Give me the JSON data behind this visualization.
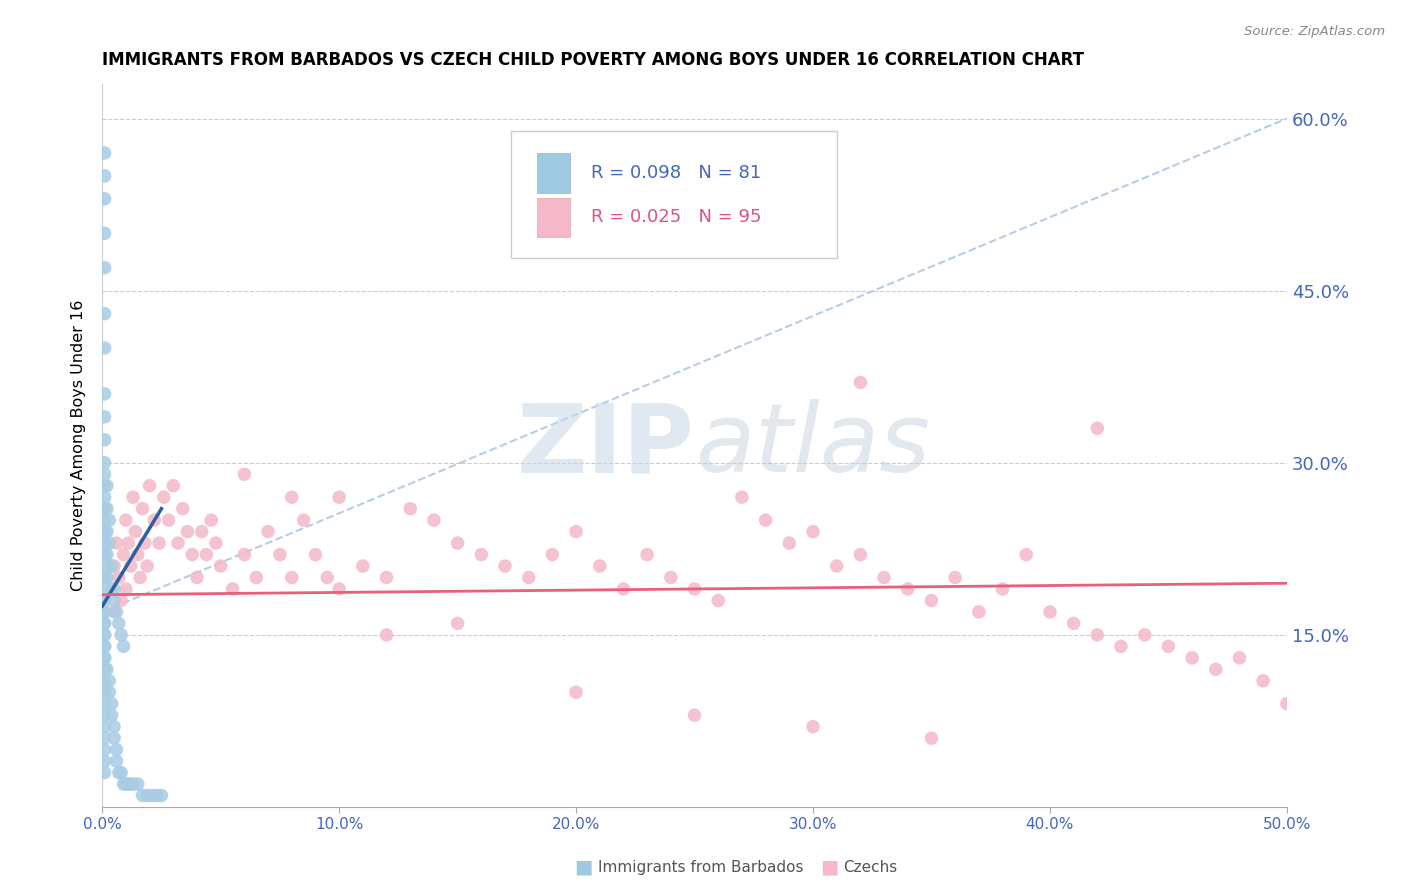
{
  "title": "IMMIGRANTS FROM BARBADOS VS CZECH CHILD POVERTY AMONG BOYS UNDER 16 CORRELATION CHART",
  "source": "Source: ZipAtlas.com",
  "ylabel": "Child Poverty Among Boys Under 16",
  "xlim": [
    0.0,
    0.5
  ],
  "ylim": [
    0.0,
    0.63
  ],
  "legend1_R": "0.098",
  "legend1_N": "81",
  "legend2_R": "0.025",
  "legend2_N": "95",
  "blue_color": "#a8cce4",
  "blue_fill_color": "#9ecae1",
  "blue_line_color": "#2c5f9e",
  "blue_dash_color": "#b0c8e0",
  "pink_color": "#f4b8c8",
  "pink_line_color": "#e8607a",
  "tick_color": "#4466bb",
  "watermark_color": "#c8d8e8",
  "barbados_x": [
    0.001,
    0.001,
    0.001,
    0.001,
    0.001,
    0.001,
    0.001,
    0.001,
    0.001,
    0.001,
    0.001,
    0.001,
    0.001,
    0.001,
    0.001,
    0.001,
    0.001,
    0.001,
    0.001,
    0.001,
    0.001,
    0.001,
    0.001,
    0.001,
    0.001,
    0.001,
    0.001,
    0.001,
    0.001,
    0.001,
    0.001,
    0.001,
    0.001,
    0.001,
    0.001,
    0.001,
    0.002,
    0.002,
    0.002,
    0.002,
    0.002,
    0.003,
    0.003,
    0.004,
    0.005,
    0.005,
    0.006,
    0.007,
    0.008,
    0.009,
    0.001,
    0.001,
    0.001,
    0.001,
    0.001,
    0.001,
    0.001,
    0.001,
    0.001,
    0.002,
    0.003,
    0.003,
    0.004,
    0.004,
    0.005,
    0.005,
    0.006,
    0.006,
    0.007,
    0.008,
    0.009,
    0.01,
    0.011,
    0.012,
    0.013,
    0.015,
    0.017,
    0.019,
    0.021,
    0.023,
    0.025
  ],
  "barbados_y": [
    0.57,
    0.55,
    0.53,
    0.5,
    0.47,
    0.43,
    0.4,
    0.36,
    0.34,
    0.32,
    0.3,
    0.29,
    0.28,
    0.27,
    0.26,
    0.25,
    0.24,
    0.23,
    0.22,
    0.21,
    0.2,
    0.2,
    0.19,
    0.18,
    0.18,
    0.17,
    0.17,
    0.16,
    0.16,
    0.15,
    0.15,
    0.14,
    0.14,
    0.13,
    0.13,
    0.12,
    0.28,
    0.26,
    0.24,
    0.22,
    0.2,
    0.25,
    0.23,
    0.21,
    0.19,
    0.18,
    0.17,
    0.16,
    0.15,
    0.14,
    0.11,
    0.1,
    0.09,
    0.08,
    0.07,
    0.06,
    0.05,
    0.04,
    0.03,
    0.12,
    0.11,
    0.1,
    0.09,
    0.08,
    0.07,
    0.06,
    0.05,
    0.04,
    0.03,
    0.03,
    0.02,
    0.02,
    0.02,
    0.02,
    0.02,
    0.02,
    0.01,
    0.01,
    0.01,
    0.01,
    0.01
  ],
  "czech_x": [
    0.004,
    0.005,
    0.005,
    0.006,
    0.007,
    0.008,
    0.009,
    0.01,
    0.01,
    0.011,
    0.012,
    0.013,
    0.014,
    0.015,
    0.016,
    0.017,
    0.018,
    0.019,
    0.02,
    0.022,
    0.024,
    0.026,
    0.028,
    0.03,
    0.032,
    0.034,
    0.036,
    0.038,
    0.04,
    0.042,
    0.044,
    0.046,
    0.048,
    0.05,
    0.055,
    0.06,
    0.065,
    0.07,
    0.075,
    0.08,
    0.085,
    0.09,
    0.095,
    0.1,
    0.11,
    0.12,
    0.13,
    0.14,
    0.15,
    0.16,
    0.17,
    0.18,
    0.19,
    0.2,
    0.21,
    0.22,
    0.23,
    0.24,
    0.25,
    0.26,
    0.27,
    0.28,
    0.29,
    0.3,
    0.31,
    0.32,
    0.33,
    0.34,
    0.35,
    0.36,
    0.37,
    0.38,
    0.39,
    0.4,
    0.41,
    0.42,
    0.43,
    0.44,
    0.45,
    0.46,
    0.47,
    0.48,
    0.49,
    0.5,
    0.32,
    0.42,
    0.15,
    0.2,
    0.25,
    0.3,
    0.35,
    0.06,
    0.08,
    0.1,
    0.12
  ],
  "czech_y": [
    0.19,
    0.21,
    0.17,
    0.23,
    0.2,
    0.18,
    0.22,
    0.25,
    0.19,
    0.23,
    0.21,
    0.27,
    0.24,
    0.22,
    0.2,
    0.26,
    0.23,
    0.21,
    0.28,
    0.25,
    0.23,
    0.27,
    0.25,
    0.28,
    0.23,
    0.26,
    0.24,
    0.22,
    0.2,
    0.24,
    0.22,
    0.25,
    0.23,
    0.21,
    0.19,
    0.22,
    0.2,
    0.24,
    0.22,
    0.2,
    0.25,
    0.22,
    0.2,
    0.19,
    0.21,
    0.2,
    0.26,
    0.25,
    0.23,
    0.22,
    0.21,
    0.2,
    0.22,
    0.24,
    0.21,
    0.19,
    0.22,
    0.2,
    0.19,
    0.18,
    0.27,
    0.25,
    0.23,
    0.24,
    0.21,
    0.22,
    0.2,
    0.19,
    0.18,
    0.2,
    0.17,
    0.19,
    0.22,
    0.17,
    0.16,
    0.15,
    0.14,
    0.15,
    0.14,
    0.13,
    0.12,
    0.13,
    0.11,
    0.09,
    0.37,
    0.33,
    0.16,
    0.1,
    0.08,
    0.07,
    0.06,
    0.29,
    0.27,
    0.27,
    0.15
  ]
}
